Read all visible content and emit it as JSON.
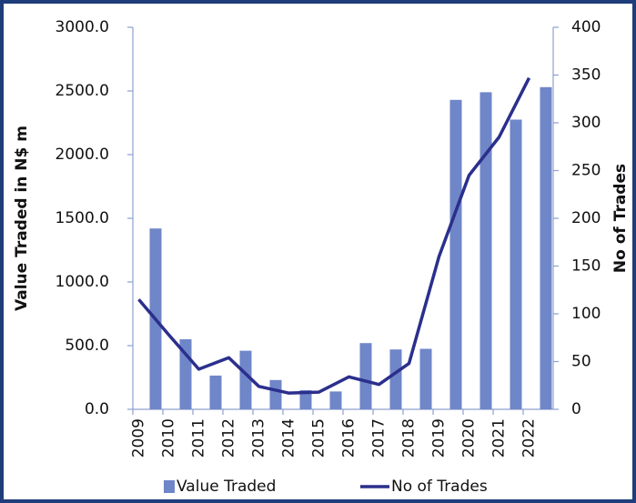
{
  "chart_data": {
    "type": "bar",
    "categories": [
      "2009",
      "2010",
      "2011",
      "2012",
      "2013",
      "2014",
      "2015",
      "2016",
      "2017",
      "2018",
      "2019",
      "2020",
      "2021",
      "2022"
    ],
    "series": [
      {
        "name": "Value Traded",
        "type": "bar",
        "color": "#6f86c8",
        "values": [
          1420,
          550,
          265,
          460,
          230,
          150,
          140,
          520,
          470,
          475,
          2430,
          2490,
          2275,
          2530
        ]
      },
      {
        "name": "No of Trades",
        "type": "line",
        "axis": "y2",
        "color": "#2b2f8c",
        "values": [
          115,
          78,
          42,
          54,
          24,
          17,
          18,
          34,
          26,
          48,
          160,
          245,
          285,
          347
        ]
      }
    ],
    "ylabel": "Value Traded in N$ m",
    "y2label": "No of Trades",
    "ylim": [
      0,
      3000
    ],
    "yticks": [
      {
        "value": 0,
        "label": "0.0"
      },
      {
        "value": 500,
        "label": "500.0"
      },
      {
        "value": 1000,
        "label": "1000.0"
      },
      {
        "value": 1500,
        "label": "1500.0"
      },
      {
        "value": 2000,
        "label": "2000.0"
      },
      {
        "value": 2500,
        "label": "2500.0"
      },
      {
        "value": 3000,
        "label": "3000.0"
      }
    ],
    "y2lim": [
      0,
      400
    ],
    "y2ticks": [
      0,
      50,
      100,
      150,
      200,
      250,
      300,
      350,
      400
    ],
    "grid": false,
    "legend": "bottom"
  }
}
